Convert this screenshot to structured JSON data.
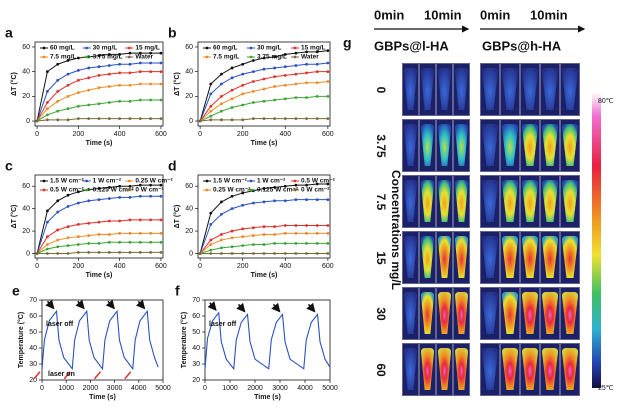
{
  "chart_data": [
    {
      "type": "line",
      "label": "a",
      "xlabel": "Time (s)",
      "ylabel": "ΔT (°C)",
      "x": [
        0,
        50,
        100,
        150,
        200,
        250,
        300,
        350,
        400,
        450,
        500,
        550,
        600
      ],
      "xlim": [
        -10,
        610
      ],
      "ylim": [
        -4,
        64
      ],
      "xticks": [
        0,
        200,
        400,
        600
      ],
      "yticks": [
        0,
        20,
        40,
        60
      ],
      "series": [
        {
          "name": "60 mg/L",
          "color": "#111111",
          "values": [
            0,
            40,
            46,
            49,
            51,
            52,
            53,
            54,
            54,
            55,
            55,
            55,
            55
          ]
        },
        {
          "name": "30 mg/L",
          "color": "#2a52be",
          "values": [
            0,
            24,
            33,
            38,
            41,
            43,
            44,
            45,
            46,
            46,
            47,
            47,
            47
          ]
        },
        {
          "name": "15 mg/L",
          "color": "#e0302a",
          "values": [
            0,
            15,
            24,
            29,
            33,
            35,
            37,
            38,
            39,
            39,
            40,
            40,
            40
          ]
        },
        {
          "name": "7.5 mg/L",
          "color": "#f08a24",
          "values": [
            0,
            10,
            16,
            20,
            23,
            25,
            27,
            28,
            29,
            29,
            30,
            30,
            30
          ]
        },
        {
          "name": "3.75 mg/L",
          "color": "#3aa635",
          "values": [
            0,
            5,
            8,
            10,
            12,
            13,
            14,
            15,
            16,
            16,
            17,
            17,
            17
          ]
        },
        {
          "name": "Water",
          "color": "#7a6a3a",
          "values": [
            0,
            1,
            1,
            1,
            2,
            2,
            2,
            2,
            2,
            2,
            2,
            2,
            2
          ]
        }
      ]
    },
    {
      "type": "line",
      "label": "b",
      "xlabel": "Time (s)",
      "ylabel": "ΔT (°C)",
      "x": [
        0,
        50,
        100,
        150,
        200,
        250,
        300,
        350,
        400,
        450,
        500,
        550,
        600
      ],
      "xlim": [
        -10,
        610
      ],
      "ylim": [
        -4,
        64
      ],
      "xticks": [
        0,
        200,
        400,
        600
      ],
      "yticks": [
        0,
        20,
        40,
        60
      ],
      "series": [
        {
          "name": "60 mg/L",
          "color": "#111111",
          "values": [
            0,
            30,
            38,
            43,
            46,
            49,
            51,
            52,
            54,
            55,
            56,
            56,
            57
          ]
        },
        {
          "name": "30 mg/L",
          "color": "#2a52be",
          "values": [
            0,
            22,
            30,
            35,
            38,
            40,
            42,
            43,
            44,
            45,
            46,
            46,
            47
          ]
        },
        {
          "name": "15 mg/L",
          "color": "#e0302a",
          "values": [
            0,
            12,
            20,
            25,
            29,
            32,
            34,
            36,
            37,
            38,
            39,
            40,
            40
          ]
        },
        {
          "name": "7.5 mg/L",
          "color": "#f08a24",
          "values": [
            0,
            8,
            14,
            18,
            22,
            24,
            26,
            28,
            29,
            30,
            31,
            31,
            32
          ]
        },
        {
          "name": "3.75 mg/L",
          "color": "#3aa635",
          "values": [
            0,
            4,
            8,
            11,
            13,
            15,
            16,
            17,
            18,
            19,
            19,
            20,
            20
          ]
        },
        {
          "name": "Water",
          "color": "#7a6a3a",
          "values": [
            0,
            1,
            1,
            1,
            1,
            2,
            2,
            2,
            2,
            2,
            2,
            2,
            2
          ]
        }
      ]
    },
    {
      "type": "line",
      "label": "c",
      "xlabel": "Time (s)",
      "ylabel": "ΔT (°C)",
      "x": [
        0,
        50,
        100,
        150,
        200,
        250,
        300,
        350,
        400,
        450,
        500,
        550,
        600
      ],
      "xlim": [
        -10,
        610
      ],
      "ylim": [
        -4,
        70
      ],
      "xticks": [
        0,
        200,
        400,
        600
      ],
      "yticks": [
        0,
        20,
        40,
        60
      ],
      "series": [
        {
          "name": "1.5 W cm⁻²",
          "color": "#111111",
          "values": [
            0,
            38,
            47,
            52,
            55,
            57,
            58,
            59,
            60,
            60,
            61,
            61,
            61
          ]
        },
        {
          "name": "1 W cm⁻²",
          "color": "#2a52be",
          "values": [
            0,
            28,
            37,
            42,
            45,
            47,
            48,
            49,
            50,
            50,
            51,
            51,
            51
          ]
        },
        {
          "name": "0.25 W cm⁻²",
          "color": "#f08a24",
          "values": [
            0,
            8,
            12,
            14,
            15,
            16,
            17,
            17,
            18,
            18,
            18,
            18,
            18
          ]
        },
        {
          "name": "0.5 W cm⁻²",
          "color": "#e0302a",
          "values": [
            0,
            15,
            21,
            24,
            26,
            27,
            28,
            29,
            29,
            30,
            30,
            30,
            30
          ]
        },
        {
          "name": "0.125 W cm⁻²",
          "color": "#3aa635",
          "values": [
            0,
            4,
            6,
            7,
            8,
            9,
            9,
            10,
            10,
            10,
            10,
            10,
            10
          ]
        },
        {
          "name": "0 W cm⁻²",
          "color": "#7a6a3a",
          "values": [
            0,
            0,
            0,
            0,
            1,
            1,
            1,
            1,
            1,
            1,
            1,
            1,
            1
          ]
        }
      ]
    },
    {
      "type": "line",
      "label": "d",
      "xlabel": "Time (s)",
      "ylabel": "ΔT (°C)",
      "x": [
        0,
        50,
        100,
        150,
        200,
        250,
        300,
        350,
        400,
        450,
        500,
        550,
        600
      ],
      "xlim": [
        -10,
        610
      ],
      "ylim": [
        -4,
        70
      ],
      "xticks": [
        0,
        200,
        400,
        600
      ],
      "yticks": [
        0,
        20,
        40,
        60
      ],
      "series": [
        {
          "name": "1.5 W cm⁻²",
          "color": "#111111",
          "values": [
            0,
            36,
            46,
            51,
            54,
            56,
            58,
            59,
            60,
            61,
            61,
            62,
            62
          ]
        },
        {
          "name": "1 W cm⁻²",
          "color": "#2a52be",
          "values": [
            0,
            26,
            35,
            40,
            43,
            45,
            46,
            47,
            47,
            48,
            48,
            48,
            48
          ]
        },
        {
          "name": "0.5 W cm⁻²",
          "color": "#e0302a",
          "values": [
            0,
            12,
            17,
            20,
            22,
            23,
            24,
            24,
            25,
            25,
            25,
            25,
            25
          ]
        },
        {
          "name": "0.25 W cm⁻²",
          "color": "#f08a24",
          "values": [
            0,
            8,
            12,
            14,
            15,
            16,
            17,
            17,
            18,
            18,
            18,
            18,
            18
          ]
        },
        {
          "name": "0.125 W cm⁻²",
          "color": "#3aa635",
          "values": [
            0,
            3,
            5,
            6,
            7,
            8,
            8,
            9,
            9,
            9,
            9,
            9,
            9
          ]
        },
        {
          "name": "0 W cm⁻²",
          "color": "#7a6a3a",
          "values": [
            0,
            0,
            0,
            0,
            0,
            0,
            0,
            0,
            0,
            0,
            0,
            0,
            0
          ]
        }
      ]
    },
    {
      "type": "line",
      "label": "e",
      "xlabel": "Time (s)",
      "ylabel": "Temperature (°C)",
      "x": [
        0,
        100,
        300,
        600,
        700,
        900,
        1250,
        1350,
        1550,
        1850,
        1950,
        2150,
        2500,
        2600,
        2800,
        3100,
        3200,
        3400,
        3750,
        3850,
        4050,
        4350,
        4450,
        4650,
        4800
      ],
      "xlim": [
        0,
        5000
      ],
      "ylim": [
        20,
        70
      ],
      "xticks": [
        0,
        1000,
        2000,
        3000,
        4000,
        5000
      ],
      "yticks": [
        20,
        30,
        40,
        50,
        60,
        70
      ],
      "series": [
        {
          "name": "cycles",
          "color": "#2a52be",
          "values": [
            27,
            45,
            57,
            63,
            45,
            34,
            27,
            45,
            57,
            63,
            45,
            34,
            27,
            45,
            57,
            63,
            45,
            34,
            27,
            45,
            57,
            63,
            45,
            34,
            28
          ]
        }
      ],
      "annotations": [
        {
          "text": "laser off",
          "color": "#111111"
        },
        {
          "text": "laser on",
          "color": "#e0302a"
        }
      ]
    },
    {
      "type": "line",
      "label": "f",
      "xlabel": "Time (s)",
      "ylabel": "Temperature (°C)",
      "x": [
        0,
        100,
        300,
        550,
        650,
        850,
        1150,
        1250,
        1450,
        1700,
        1800,
        2000,
        2550,
        2650,
        2850,
        3100,
        3200,
        3400,
        3950,
        4050,
        4250,
        4500,
        4600,
        4800,
        5000
      ],
      "xlim": [
        0,
        5000
      ],
      "ylim": [
        20,
        70
      ],
      "xticks": [
        0,
        1000,
        2000,
        3000,
        4000,
        5000
      ],
      "yticks": [
        20,
        30,
        40,
        50,
        60,
        70
      ],
      "series": [
        {
          "name": "cycles",
          "color": "#2a52be",
          "values": [
            27,
            46,
            57,
            62,
            44,
            33,
            27,
            45,
            56,
            61,
            44,
            33,
            27,
            45,
            56,
            61,
            44,
            33,
            27,
            45,
            56,
            61,
            44,
            33,
            28
          ]
        }
      ],
      "annotations": [
        {
          "text": "laser off",
          "color": "#111111"
        }
      ]
    }
  ],
  "thermal_panel": {
    "label": "g",
    "headers": [
      "0min",
      "10min",
      "0min",
      "10min"
    ],
    "groups": [
      "GBPs@l-HA",
      "GBPs@h-HA"
    ],
    "rows": [
      "0",
      "3.75",
      "7.5",
      "15",
      "30",
      "60"
    ],
    "axis_title": "Concentrations mg/L",
    "colorbar": {
      "max_label": "80℃",
      "min_label": "25℃"
    }
  }
}
